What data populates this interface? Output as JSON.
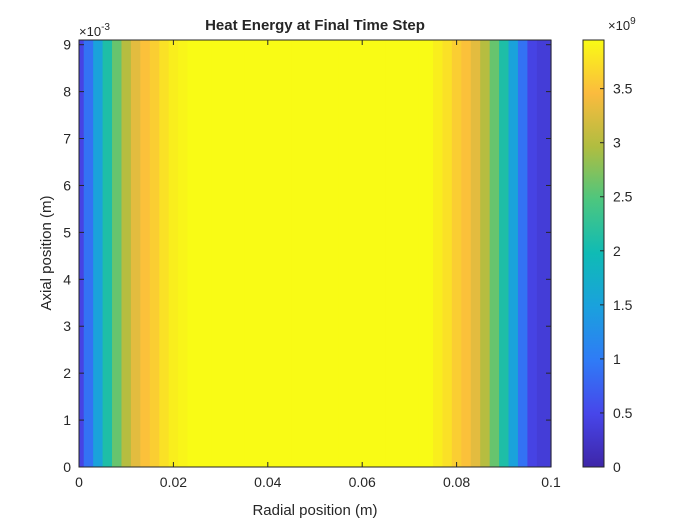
{
  "chart_data": {
    "type": "heatmap",
    "title": "Heat Energy at Final Time Step",
    "xlabel": "Radial position (m)",
    "ylabel": "Axial position (m)",
    "xlim": [
      0,
      0.1
    ],
    "ylim": [
      0,
      0.0091
    ],
    "xticks": [
      0,
      0.02,
      0.04,
      0.06,
      0.08,
      0.1
    ],
    "xtick_labels": [
      "0",
      "0.02",
      "0.04",
      "0.06",
      "0.08",
      "0.1"
    ],
    "yticks": [
      0,
      1,
      2,
      3,
      4,
      5,
      6,
      7,
      8,
      9
    ],
    "ytick_labels": [
      "0",
      "1",
      "2",
      "3",
      "4",
      "5",
      "6",
      "7",
      "8",
      "9"
    ],
    "y_exponent": {
      "base": "×10",
      "power": "-3"
    },
    "colormap": "parula",
    "colorbar": {
      "clim": [
        0,
        3.95
      ],
      "ticks": [
        0,
        0.5,
        1,
        1.5,
        2,
        2.5,
        3,
        3.5
      ],
      "tick_labels": [
        "0",
        "0.5",
        "1",
        "1.5",
        "2",
        "2.5",
        "3",
        "3.5"
      ],
      "exponent": {
        "base": "×10",
        "power": "9"
      }
    },
    "radial_profile_note_units": "values in units of 1e9",
    "r": [
      0,
      0.002,
      0.004,
      0.006,
      0.008,
      0.01,
      0.012,
      0.014,
      0.016,
      0.018,
      0.02,
      0.022,
      0.024,
      0.026,
      0.03,
      0.04,
      0.05,
      0.06,
      0.07,
      0.074,
      0.076,
      0.078,
      0.08,
      0.082,
      0.084,
      0.086,
      0.088,
      0.09,
      0.092,
      0.094,
      0.096,
      0.098,
      0.1
    ],
    "values": [
      0.45,
      0.9,
      1.5,
      2.1,
      2.6,
      3.0,
      3.3,
      3.5,
      3.6,
      3.75,
      3.85,
      3.9,
      3.95,
      3.95,
      3.95,
      3.95,
      3.95,
      3.95,
      3.95,
      3.95,
      3.85,
      3.75,
      3.6,
      3.5,
      3.3,
      3.0,
      2.6,
      2.1,
      1.5,
      0.9,
      0.45,
      0.35,
      0.35
    ]
  }
}
